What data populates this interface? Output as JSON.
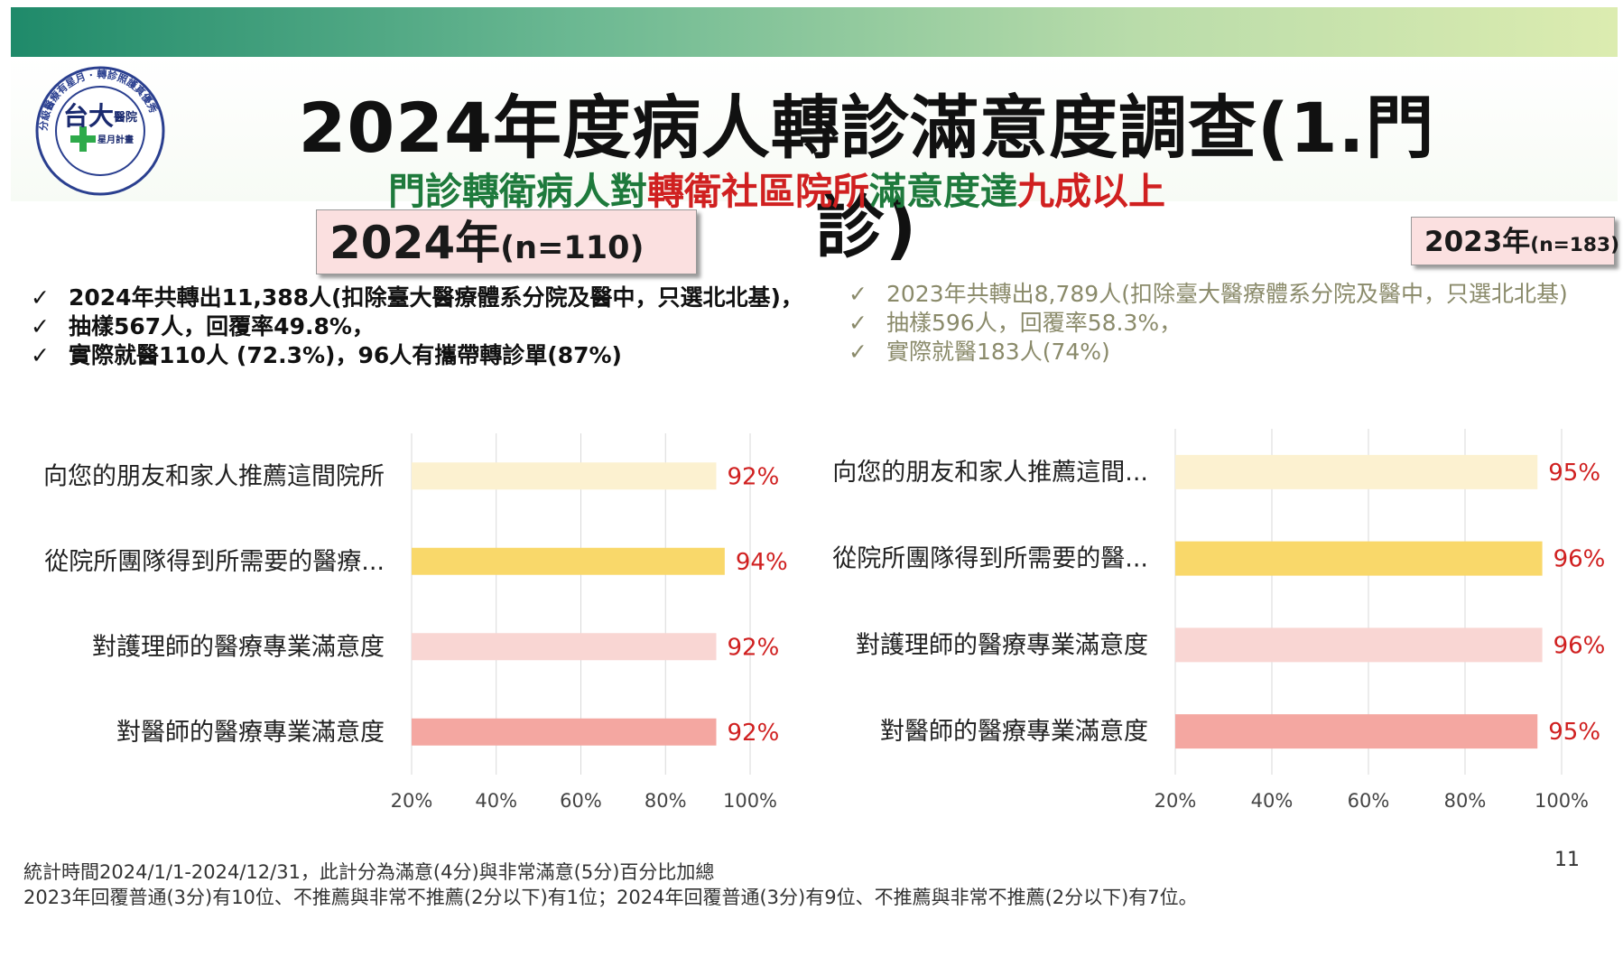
{
  "title": "2024年度病人轉診滿意度調查(1.門診)",
  "subtitle_parts": [
    {
      "text": "門診轉衛病人對",
      "color": "#1e7a3c"
    },
    {
      "text": "轉衛社區院所",
      "color": "#d02020"
    },
    {
      "text": "滿意度達",
      "color": "#1e7a3c"
    },
    {
      "text": "九成以上",
      "color": "#d02020"
    }
  ],
  "logo": {
    "main": "台大",
    "side": "醫院",
    "sub": "星月計畫",
    "ring_text": "分級醫療有星月 · 轉診照護真優秀"
  },
  "left_panel": {
    "year_main": "2024年",
    "year_sub": "(n=110)",
    "bullets": [
      "2024年共轉出11,388人(扣除臺大醫療體系分院及醫中，只選北北基)，",
      "抽樣567人，回覆率49.8%，",
      "實際就醫110人 (72.3%)，96人有攜帶轉診單(87%)"
    ]
  },
  "right_panel": {
    "year_main": "2023年",
    "year_sub": "(n=183)",
    "bullets": [
      "2023年共轉出8,789人(扣除臺大醫療體系分院及醫中，只選北北基)",
      "抽樣596人，回覆率58.3%，",
      "實際就醫183人(74%)"
    ]
  },
  "check_symbol": "✓",
  "colors": {
    "bar1": "#fcf1d0",
    "bar2": "#f9d86a",
    "bar3": "#f9d6d3",
    "bar4": "#f4a7a1",
    "label_red": "#d02020",
    "grid": "#d9d9d9"
  },
  "chart_data": [
    {
      "type": "bar",
      "orientation": "horizontal",
      "categories": [
        "向您的朋友和家人推薦這間院所",
        "從院所團隊得到所需要的醫療...",
        "對護理師的醫療專業滿意度",
        "對醫師的醫療專業滿意度"
      ],
      "values": [
        92,
        94,
        92,
        92
      ],
      "data_labels": [
        "92%",
        "94%",
        "92%",
        "92%"
      ],
      "xlim": [
        20,
        100
      ],
      "xticks": [
        "20%",
        "40%",
        "60%",
        "80%",
        "100%"
      ],
      "grid": true,
      "xlabel": "",
      "ylabel": ""
    },
    {
      "type": "bar",
      "orientation": "horizontal",
      "categories": [
        "向您的朋友和家人推薦這間...",
        "從院所團隊得到所需要的醫...",
        "對護理師的醫療專業滿意度",
        "對醫師的醫療專業滿意度"
      ],
      "values": [
        95,
        96,
        96,
        95
      ],
      "data_labels": [
        "95%",
        "96%",
        "96%",
        "95%"
      ],
      "xlim": [
        20,
        100
      ],
      "xticks": [
        "20%",
        "40%",
        "60%",
        "80%",
        "100%"
      ],
      "grid": true,
      "xlabel": "",
      "ylabel": ""
    }
  ],
  "footnotes": [
    "統計時間2024/1/1-2024/12/31，此計分為滿意(4分)與非常滿意(5分)百分比加總",
    "2023年回覆普通(3分)有10位、不推薦與非常不推薦(2分以下)有1位；2024年回覆普通(3分)有9位、不推薦與非常不推薦(2分以下)有7位。"
  ],
  "page_number": "11"
}
